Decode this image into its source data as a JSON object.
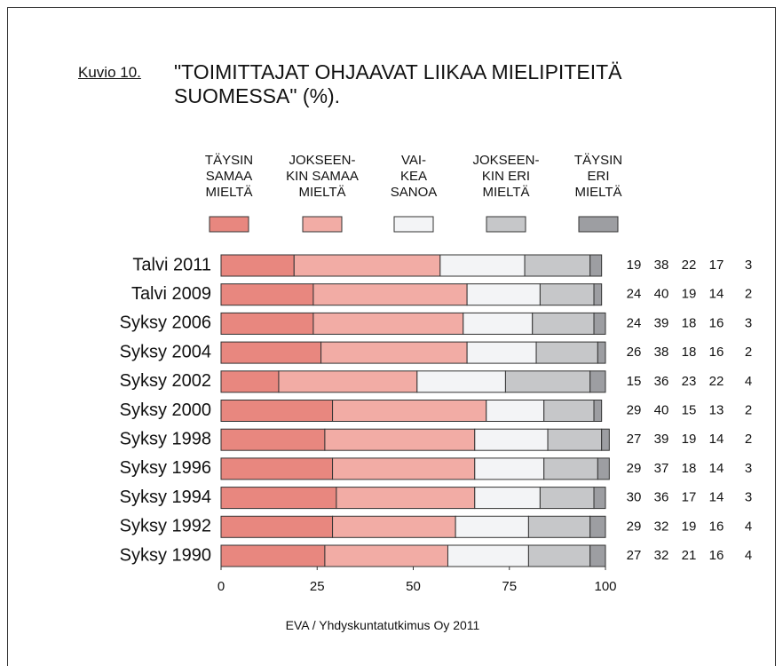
{
  "chart_data": {
    "type": "stacked_barh",
    "figure_label": "Kuvio 10.",
    "title": "\"TOIMITTAJAT OHJAAVAT LIIKAA MIELIPITEITÄ\n SUOMESSA\" (%).",
    "source": "EVA / Yhdyskuntatutkimus Oy 2011",
    "categories": [
      "Talvi 2011",
      "Talvi 2009",
      "Syksy 2006",
      "Syksy 2004",
      "Syksy 2002",
      "Syksy 2000",
      "Syksy 1998",
      "Syksy 1996",
      "Syksy 1994",
      "Syksy 1992",
      "Syksy 1990"
    ],
    "series": [
      {
        "name": "TÄYSIN\nSAMAA\nMIELTÄ",
        "color": "#e8877f",
        "values": [
          19,
          24,
          24,
          26,
          15,
          29,
          27,
          29,
          30,
          29,
          27
        ]
      },
      {
        "name": "JOKSEEN-\nKIN SAMAA\nMIELTÄ",
        "color": "#f2aca5",
        "values": [
          38,
          40,
          39,
          38,
          36,
          40,
          39,
          37,
          36,
          32,
          32
        ]
      },
      {
        "name": "VAI-\nKEA\nSANOA",
        "color": "#f3f4f6",
        "values": [
          22,
          19,
          18,
          18,
          23,
          15,
          19,
          18,
          17,
          19,
          21
        ]
      },
      {
        "name": "JOKSEEN-\nKIN ERI\nMIELTÄ",
        "color": "#c6c7c9",
        "values": [
          17,
          14,
          16,
          16,
          22,
          13,
          14,
          14,
          14,
          16,
          16
        ]
      },
      {
        "name": "TÄYSIN\nERI\nMIELTÄ",
        "color": "#9d9ea2",
        "values": [
          3,
          2,
          3,
          2,
          4,
          2,
          2,
          3,
          3,
          4,
          4
        ]
      }
    ],
    "xlim": [
      0,
      100
    ],
    "xticks": [
      0,
      25,
      50,
      75,
      100
    ]
  }
}
